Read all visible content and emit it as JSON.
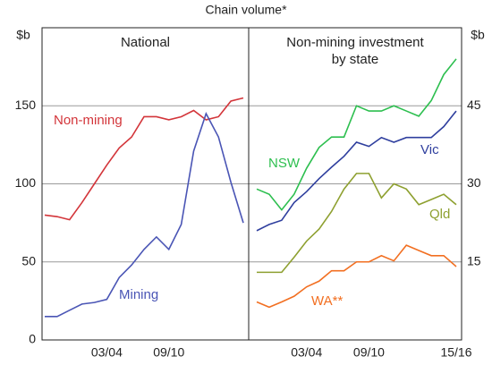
{
  "title": "Chain volume*",
  "chart_data": [
    {
      "type": "line",
      "title": [
        "National"
      ],
      "ylabel": "$b",
      "yaxis_side": "left",
      "categories": [
        null,
        null,
        null,
        null,
        null,
        "03/04",
        null,
        null,
        null,
        null,
        "09/10",
        null,
        null,
        null,
        null,
        null,
        null
      ],
      "ylim": [
        0,
        200
      ],
      "yticks": [
        0,
        50,
        100,
        150
      ],
      "grid": true,
      "series": [
        {
          "name": "Non-mining",
          "color": "#d3353a",
          "values": [
            80,
            79,
            77,
            88,
            100,
            112,
            123,
            130,
            143,
            143,
            141,
            143,
            147,
            141,
            143,
            153,
            155
          ]
        },
        {
          "name": "Mining",
          "color": "#4a55b5",
          "values": [
            15,
            15,
            19,
            23,
            24,
            26,
            40,
            48,
            58,
            66,
            58,
            74,
            121,
            145,
            130,
            101,
            75
          ]
        }
      ]
    },
    {
      "type": "line",
      "title": [
        "Non-mining investment",
        "by state"
      ],
      "ylabel": "$b",
      "yaxis_side": "right",
      "categories": [
        null,
        null,
        null,
        null,
        "03/04",
        null,
        null,
        null,
        null,
        "09/10",
        null,
        null,
        null,
        null,
        null,
        null,
        "15/16"
      ],
      "ylim": [
        0,
        60
      ],
      "yticks": [
        15,
        30,
        45
      ],
      "grid": true,
      "series": [
        {
          "name": "NSW",
          "color": "#2dbf4f",
          "values": [
            29,
            28,
            25,
            28,
            33,
            37,
            39,
            39,
            45,
            44,
            44,
            45,
            44,
            43,
            46,
            51,
            54
          ]
        },
        {
          "name": "Vic",
          "color": "#2f3f9e",
          "values": [
            21,
            22.2,
            23,
            26.4,
            28.5,
            31,
            33.2,
            35.3,
            38,
            37.2,
            38.9,
            38,
            38.9,
            38.9,
            38.9,
            41,
            44
          ]
        },
        {
          "name": "Qld",
          "color": "#8ea030",
          "values": [
            13,
            13,
            13,
            15.9,
            19,
            21.3,
            24.7,
            29,
            32,
            32,
            27.3,
            30,
            29,
            26,
            27,
            28,
            26
          ]
        },
        {
          "name": "WA**",
          "color": "#f26f21",
          "values": [
            7.3,
            6.3,
            7.3,
            8.4,
            10.2,
            11.3,
            13.3,
            13.3,
            15,
            15,
            16.2,
            15.2,
            18.2,
            17.2,
            16.2,
            16.2,
            14.1
          ]
        }
      ]
    }
  ]
}
